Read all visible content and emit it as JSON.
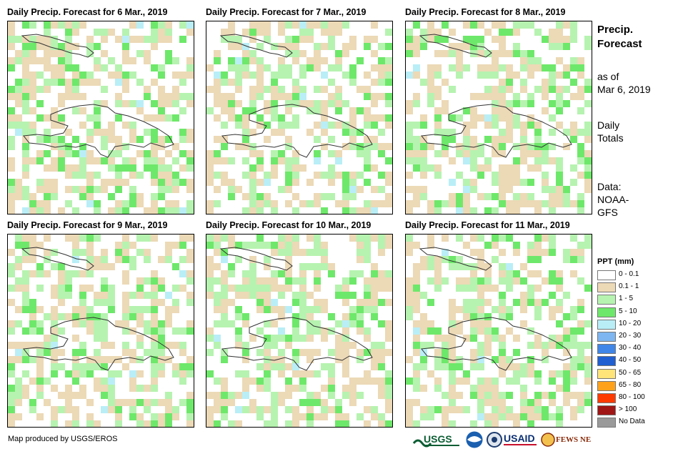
{
  "panels": [
    {
      "title": "Daily Precip. Forecast for 6 Mar., 2019"
    },
    {
      "title": "Daily Precip. Forecast for 7 Mar., 2019"
    },
    {
      "title": "Daily Precip. Forecast for 8 Mar., 2019"
    },
    {
      "title": "Daily Precip. Forecast for 9 Mar., 2019"
    },
    {
      "title": "Daily Precip. Forecast for 10 Mar., 2019"
    },
    {
      "title": "Daily Precip. Forecast for 11 Mar., 2019"
    }
  ],
  "side": {
    "heading_line1": "Precip.",
    "heading_line2": "Forecast",
    "asof_line1": "as of",
    "asof_line2": "Mar 6, 2019",
    "totals_line1": "Daily",
    "totals_line2": "Totals",
    "data_line1": "Data:",
    "data_line2": "NOAA-",
    "data_line3": "GFS"
  },
  "legend": {
    "title": "PPT (mm)",
    "items": [
      {
        "label": "0 - 0.1",
        "color": "#ffffff"
      },
      {
        "label": "0.1 - 1",
        "color": "#ecd9b6"
      },
      {
        "label": "1 - 5",
        "color": "#b6f3b0"
      },
      {
        "label": "5 - 10",
        "color": "#6ee86a"
      },
      {
        "label": "10 - 20",
        "color": "#b9eef7"
      },
      {
        "label": "20 - 30",
        "color": "#7db6f0"
      },
      {
        "label": "30 - 40",
        "color": "#3f86e8"
      },
      {
        "label": "40 - 50",
        "color": "#1f5fd2"
      },
      {
        "label": "50 - 65",
        "color": "#ffe47a"
      },
      {
        "label": "65 - 80",
        "color": "#ffa21a"
      },
      {
        "label": "80 - 100",
        "color": "#ff3a00"
      },
      {
        "label": "> 100",
        "color": "#a01616"
      },
      {
        "label": "No Data",
        "color": "#9a9a9a"
      }
    ]
  },
  "credit": "Map produced by USGS/EROS",
  "logos": [
    {
      "name": "usgs-logo",
      "text": "USGS"
    },
    {
      "name": "noaa-logo",
      "text": "NOAA"
    },
    {
      "name": "dhs-logo",
      "text": ""
    },
    {
      "name": "usaid-logo",
      "text": "USAID"
    },
    {
      "name": "fewsnet-logo",
      "text": "FEWS NET"
    }
  ]
}
